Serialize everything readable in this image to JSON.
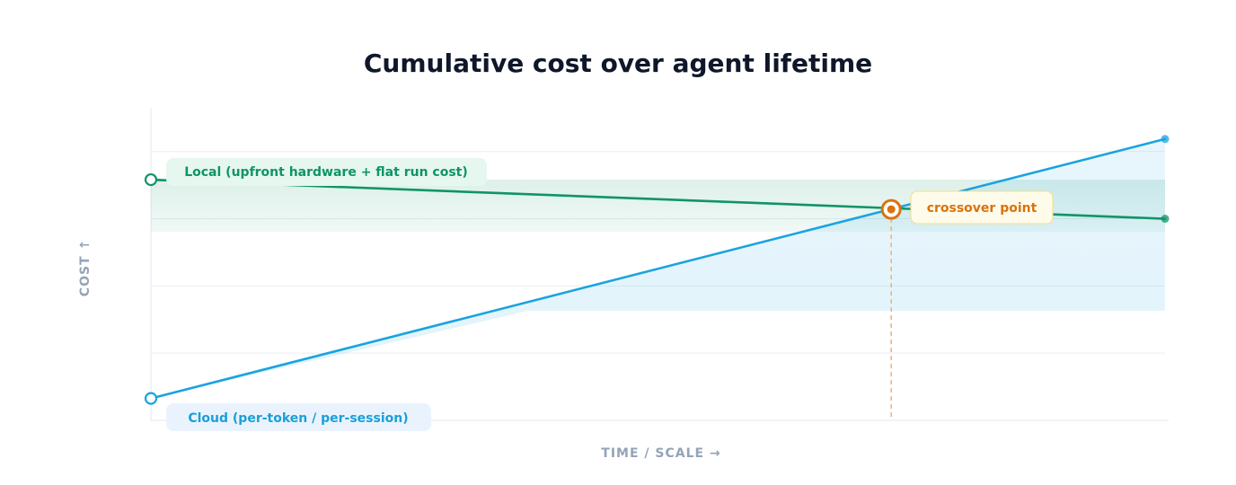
{
  "chart_data": {
    "type": "line",
    "title": "Cumulative cost over agent lifetime",
    "xlabel": "TIME / SCALE →",
    "ylabel": "COST ↑",
    "x": [
      0,
      1
    ],
    "xlim": [
      0,
      1
    ],
    "ylim": [
      0,
      1
    ],
    "grid": true,
    "series": [
      {
        "name": "Local (upfront hardware + flat run cost)",
        "color": "#0f9467",
        "values": [
          0.77,
          0.645
        ]
      },
      {
        "name": "Cloud (per-token / per-session)",
        "color": "#1aa3e0",
        "values": [
          0.07,
          0.9
        ]
      }
    ],
    "annotations": [
      {
        "text": "crossover point",
        "x": 0.73,
        "y": 0.675,
        "color": "#d9730d"
      }
    ]
  }
}
